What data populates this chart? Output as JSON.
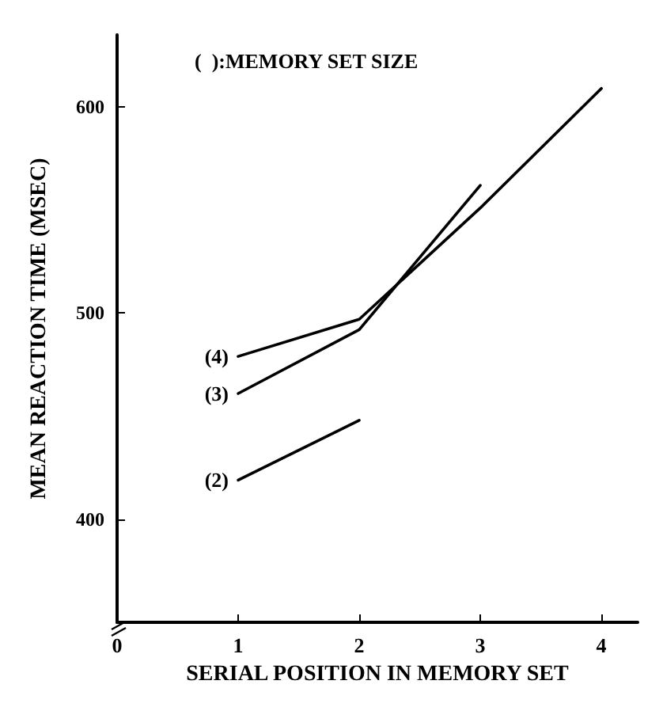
{
  "chart_data": {
    "type": "line",
    "xlabel": "SERIAL POSITION IN MEMORY SET",
    "ylabel": "MEAN REACTION TIME (MSEC)",
    "annotations": [
      "(  ):MEMORY SET SIZE"
    ],
    "xlim": [
      0,
      4.3
    ],
    "xticks": [
      0,
      1,
      2,
      3,
      4
    ],
    "ylim": [
      350,
      635
    ],
    "yticks": [
      400,
      500,
      600
    ],
    "grid": false,
    "legend": false,
    "marker": "none",
    "line_style": "solid",
    "series": [
      {
        "name": "(4)",
        "color": "#000000",
        "x": [
          1,
          2,
          3,
          4
        ],
        "values": [
          479,
          497,
          551,
          609
        ]
      },
      {
        "name": "(3)",
        "color": "#000000",
        "x": [
          1,
          2,
          3
        ],
        "values": [
          461,
          492,
          562
        ]
      },
      {
        "name": "(2)",
        "color": "#000000",
        "x": [
          1,
          2
        ],
        "values": [
          419,
          448
        ]
      }
    ]
  }
}
